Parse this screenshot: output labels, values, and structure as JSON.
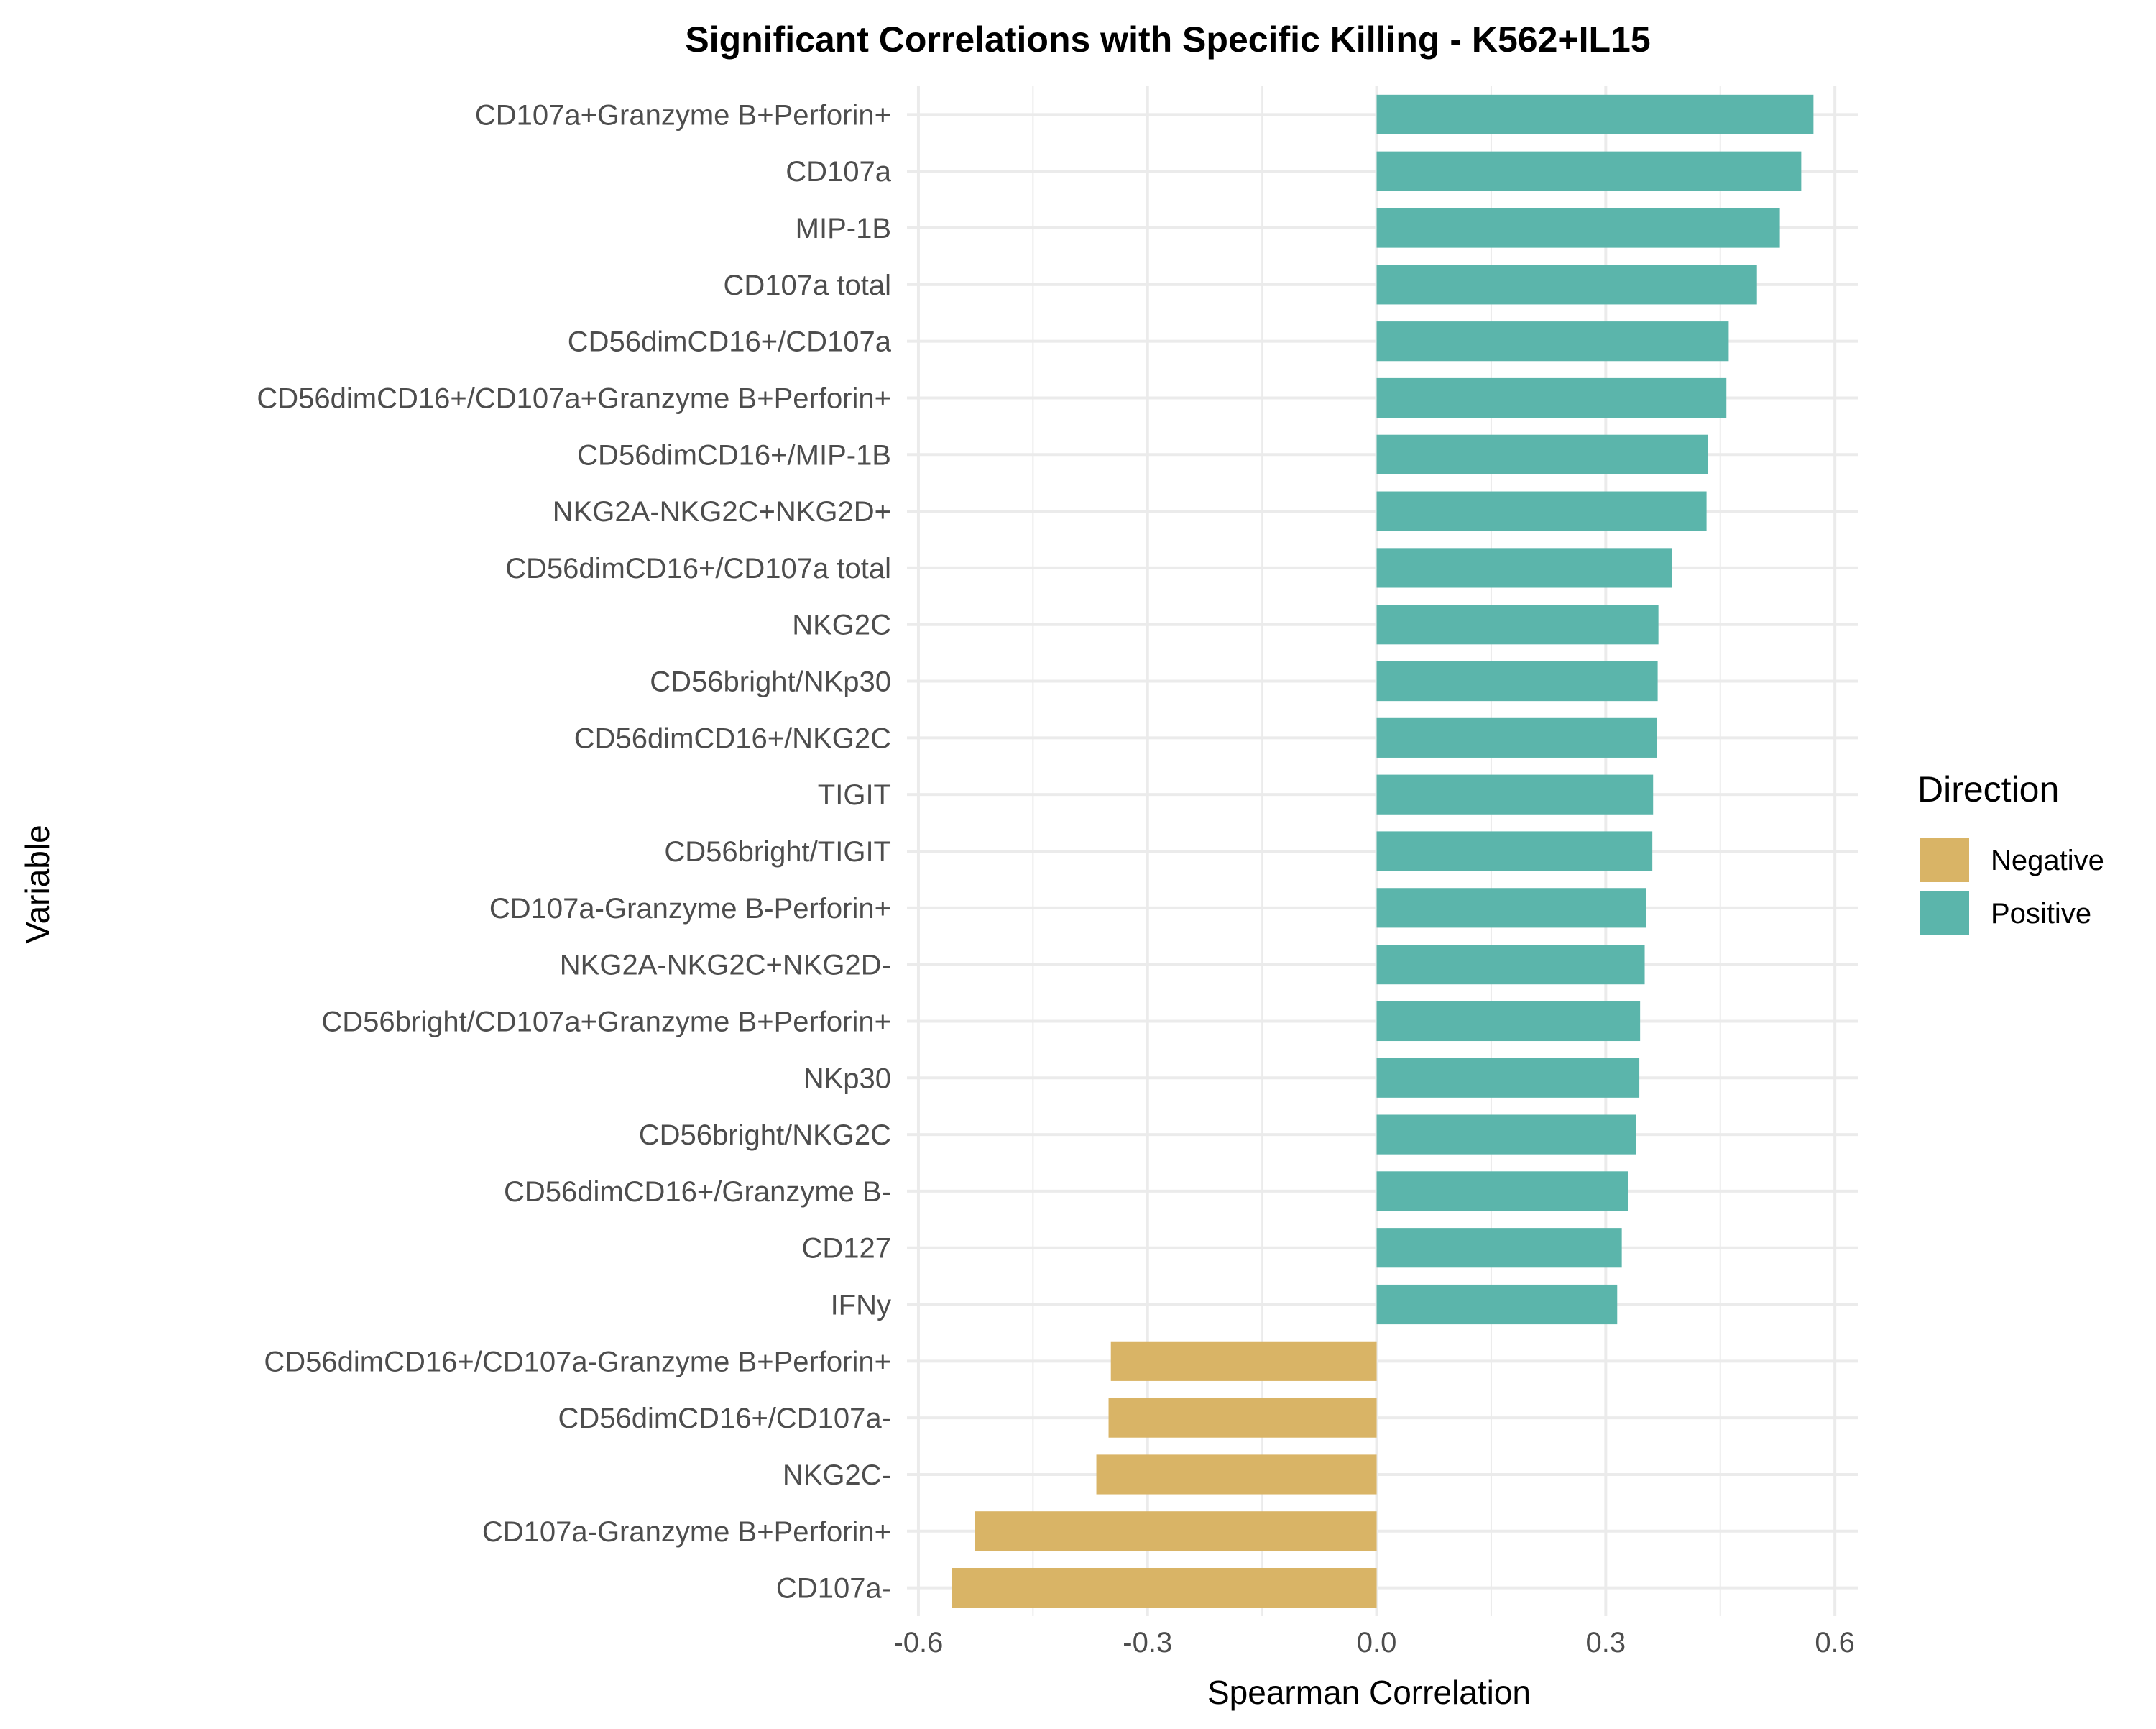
{
  "chart_data": {
    "type": "bar",
    "orientation": "horizontal",
    "title": "Significant Correlations with Specific Killing - K562+IL15",
    "xlabel": "Spearman Correlation",
    "ylabel": "Variable",
    "xlim": [
      -0.615,
      0.63
    ],
    "x_ticks": [
      -0.6,
      -0.3,
      0.0,
      0.3,
      0.6
    ],
    "x_tick_labels": [
      "-0.6",
      "-0.3",
      "0.0",
      "0.3",
      "0.6"
    ],
    "grid": true,
    "legend": {
      "title": "Direction",
      "placement": "right",
      "entries": [
        {
          "label": "Negative",
          "color": "#D9B466"
        },
        {
          "label": "Positive",
          "color": "#5BB5AB"
        }
      ]
    },
    "categories": [
      "CD107a+Granzyme B+Perforin+",
      "CD107a",
      "MIP-1B",
      "CD107a total",
      "CD56dimCD16+/CD107a",
      "CD56dimCD16+/CD107a+Granzyme B+Perforin+",
      "CD56dimCD16+/MIP-1B",
      "NKG2A-NKG2C+NKG2D+",
      "CD56dimCD16+/CD107a total",
      "NKG2C",
      "CD56bright/NKp30",
      "CD56dimCD16+/NKG2C",
      "TIGIT",
      "CD56bright/TIGIT",
      "CD107a-Granzyme B-Perforin+",
      "NKG2A-NKG2C+NKG2D-",
      "CD56bright/CD107a+Granzyme B+Perforin+",
      "NKp30",
      "CD56bright/NKG2C",
      "CD56dimCD16+/Granzyme B-",
      "CD127",
      "IFNy",
      "CD56dimCD16+/CD107a-Granzyme B+Perforin+",
      "CD56dimCD16+/CD107a-",
      "NKG2C-",
      "CD107a-Granzyme B+Perforin+",
      "CD107a-"
    ],
    "values": [
      0.572,
      0.556,
      0.528,
      0.498,
      0.461,
      0.458,
      0.434,
      0.432,
      0.387,
      0.369,
      0.368,
      0.367,
      0.362,
      0.361,
      0.353,
      0.351,
      0.345,
      0.344,
      0.34,
      0.329,
      0.321,
      0.315,
      -0.348,
      -0.351,
      -0.367,
      -0.526,
      -0.556
    ],
    "direction": [
      "Positive",
      "Positive",
      "Positive",
      "Positive",
      "Positive",
      "Positive",
      "Positive",
      "Positive",
      "Positive",
      "Positive",
      "Positive",
      "Positive",
      "Positive",
      "Positive",
      "Positive",
      "Positive",
      "Positive",
      "Positive",
      "Positive",
      "Positive",
      "Positive",
      "Positive",
      "Negative",
      "Negative",
      "Negative",
      "Negative",
      "Negative"
    ]
  }
}
